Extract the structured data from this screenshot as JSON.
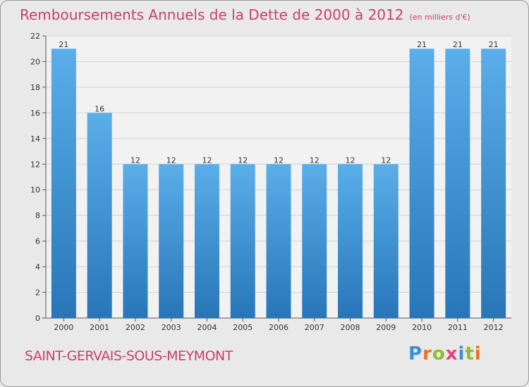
{
  "title": "Remboursements Annuels de la Dette de 2000 à 2012",
  "unit": "(en milliers d'€)",
  "commune": "SAINT-GERVAIS-SOUS-MEYMONT",
  "logo": {
    "letters": [
      "P",
      "r",
      "o",
      "x",
      "i",
      "t",
      "i"
    ],
    "colors": [
      "#3b8fd0",
      "#e8731a",
      "#8cbd2b",
      "#e83f86",
      "#3b8fd0",
      "#8cbd2b",
      "#e8731a"
    ]
  },
  "colors": {
    "bar": "#3d8fd4",
    "bar_light": "#5aaae6",
    "text_accent": "#c83f6b"
  },
  "chart_data": {
    "type": "bar",
    "categories": [
      "2000",
      "2001",
      "2002",
      "2003",
      "2004",
      "2005",
      "2006",
      "2007",
      "2008",
      "2009",
      "2010",
      "2011",
      "2012"
    ],
    "values": [
      21,
      16,
      12,
      12,
      12,
      12,
      12,
      12,
      12,
      12,
      21,
      21,
      21
    ],
    "ylim": [
      0,
      22
    ],
    "yticks": [
      0,
      2,
      4,
      6,
      8,
      10,
      12,
      14,
      16,
      18,
      20,
      22
    ],
    "grid": true
  }
}
